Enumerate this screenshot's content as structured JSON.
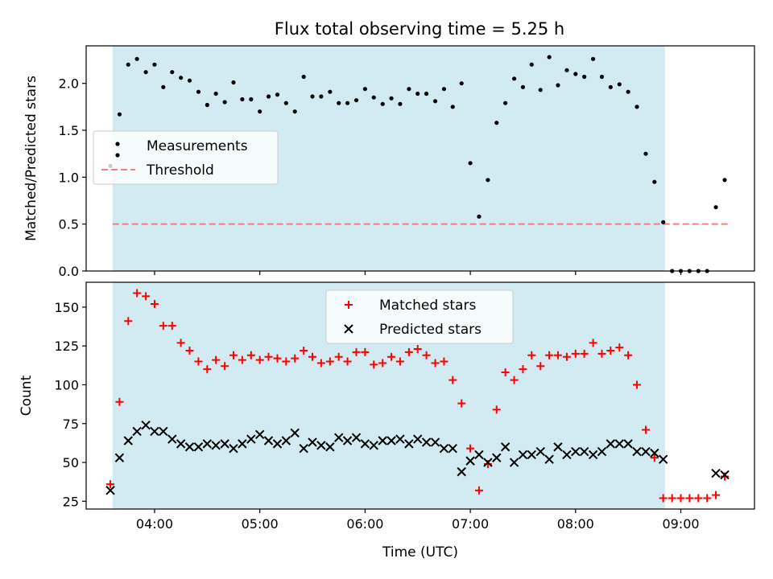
{
  "title": "Flux total observing time = 5.25 h",
  "chart_data": [
    {
      "type": "scatter",
      "panel": "top",
      "ylabel": "Matched/Predicted stars",
      "xlabel": "",
      "x_unit": "hours UTC",
      "xlim": [
        3.35,
        9.7
      ],
      "ylim": [
        0,
        2.4
      ],
      "y_ticks": [
        0.0,
        0.5,
        1.0,
        1.5,
        2.0
      ],
      "y_tick_labels": [
        "0.0",
        "0.5",
        "1.0",
        "1.5",
        "2.0"
      ],
      "shaded_span": [
        3.6,
        8.85
      ],
      "shade_color": "#add8e6",
      "legend_position": "center-left",
      "legend": [
        "Measurements",
        "Threshold"
      ],
      "series": [
        {
          "name": "Measurements",
          "marker": "dot",
          "color": "#000000",
          "points": [
            [
              3.58,
              1.12
            ],
            [
              3.667,
              1.67
            ],
            [
              3.75,
              2.2
            ],
            [
              3.833,
              2.26
            ],
            [
              3.917,
              2.12
            ],
            [
              4.0,
              2.2
            ],
            [
              4.083,
              1.96
            ],
            [
              4.167,
              2.12
            ],
            [
              4.25,
              2.06
            ],
            [
              4.333,
              2.03
            ],
            [
              4.417,
              1.91
            ],
            [
              4.5,
              1.77
            ],
            [
              4.583,
              1.89
            ],
            [
              4.667,
              1.8
            ],
            [
              4.75,
              2.01
            ],
            [
              4.833,
              1.83
            ],
            [
              4.917,
              1.83
            ],
            [
              5.0,
              1.7
            ],
            [
              5.083,
              1.86
            ],
            [
              5.167,
              1.88
            ],
            [
              5.25,
              1.79
            ],
            [
              5.333,
              1.7
            ],
            [
              5.417,
              2.07
            ],
            [
              5.5,
              1.86
            ],
            [
              5.583,
              1.86
            ],
            [
              5.667,
              1.91
            ],
            [
              5.75,
              1.79
            ],
            [
              5.833,
              1.79
            ],
            [
              5.917,
              1.82
            ],
            [
              6.0,
              1.94
            ],
            [
              6.083,
              1.85
            ],
            [
              6.167,
              1.78
            ],
            [
              6.25,
              1.84
            ],
            [
              6.333,
              1.78
            ],
            [
              6.417,
              1.94
            ],
            [
              6.5,
              1.89
            ],
            [
              6.583,
              1.89
            ],
            [
              6.667,
              1.81
            ],
            [
              6.75,
              1.94
            ],
            [
              6.833,
              1.75
            ],
            [
              6.917,
              2.0
            ],
            [
              7.0,
              1.15
            ],
            [
              7.083,
              0.58
            ],
            [
              7.167,
              0.97
            ],
            [
              7.25,
              1.58
            ],
            [
              7.333,
              1.79
            ],
            [
              7.417,
              2.05
            ],
            [
              7.5,
              1.96
            ],
            [
              7.583,
              2.2
            ],
            [
              7.667,
              1.93
            ],
            [
              7.75,
              2.28
            ],
            [
              7.833,
              1.98
            ],
            [
              7.917,
              2.14
            ],
            [
              8.0,
              2.1
            ],
            [
              8.083,
              2.07
            ],
            [
              8.167,
              2.26
            ],
            [
              8.25,
              2.07
            ],
            [
              8.333,
              1.96
            ],
            [
              8.417,
              1.99
            ],
            [
              8.5,
              1.91
            ],
            [
              8.583,
              1.75
            ],
            [
              8.667,
              1.25
            ],
            [
              8.75,
              0.95
            ],
            [
              8.833,
              0.52
            ],
            [
              8.917,
              0.0
            ],
            [
              9.0,
              0.0
            ],
            [
              9.083,
              0.0
            ],
            [
              9.167,
              0.0
            ],
            [
              9.25,
              0.0
            ],
            [
              9.333,
              0.68
            ],
            [
              9.417,
              0.97
            ]
          ]
        },
        {
          "name": "Threshold",
          "style": "dashed",
          "color": "#f08080",
          "points": [
            [
              3.6,
              0.5
            ],
            [
              9.45,
              0.5
            ]
          ]
        }
      ]
    },
    {
      "type": "scatter",
      "panel": "bottom",
      "ylabel": "Count",
      "xlabel": "Time (UTC)",
      "x_unit": "hours UTC",
      "xlim": [
        3.35,
        9.7
      ],
      "ylim": [
        20,
        166
      ],
      "x_ticks": [
        4,
        5,
        6,
        7,
        8,
        9
      ],
      "x_tick_labels": [
        "04:00",
        "05:00",
        "06:00",
        "07:00",
        "08:00",
        "09:00"
      ],
      "y_ticks": [
        25,
        50,
        75,
        100,
        125,
        150
      ],
      "y_tick_labels": [
        "25",
        "50",
        "75",
        "100",
        "125",
        "150"
      ],
      "shaded_span": [
        3.6,
        8.85
      ],
      "shade_color": "#add8e6",
      "legend_position": "top-center",
      "legend": [
        "Matched stars",
        "Predicted stars"
      ],
      "series": [
        {
          "name": "Matched stars",
          "marker": "plus",
          "color": "#ff0000",
          "points": [
            [
              3.58,
              36
            ],
            [
              3.667,
              89
            ],
            [
              3.75,
              141
            ],
            [
              3.833,
              159
            ],
            [
              3.917,
              157
            ],
            [
              4.0,
              152
            ],
            [
              4.083,
              138
            ],
            [
              4.167,
              138
            ],
            [
              4.25,
              127
            ],
            [
              4.333,
              122
            ],
            [
              4.417,
              115
            ],
            [
              4.5,
              110
            ],
            [
              4.583,
              116
            ],
            [
              4.667,
              112
            ],
            [
              4.75,
              119
            ],
            [
              4.833,
              116
            ],
            [
              4.917,
              119
            ],
            [
              5.0,
              116
            ],
            [
              5.083,
              118
            ],
            [
              5.167,
              117
            ],
            [
              5.25,
              115
            ],
            [
              5.333,
              117
            ],
            [
              5.417,
              122
            ],
            [
              5.5,
              118
            ],
            [
              5.583,
              114
            ],
            [
              5.667,
              115
            ],
            [
              5.75,
              118
            ],
            [
              5.833,
              115
            ],
            [
              5.917,
              121
            ],
            [
              6.0,
              121
            ],
            [
              6.083,
              113
            ],
            [
              6.167,
              114
            ],
            [
              6.25,
              118
            ],
            [
              6.333,
              115
            ],
            [
              6.417,
              121
            ],
            [
              6.5,
              123
            ],
            [
              6.583,
              119
            ],
            [
              6.667,
              114
            ],
            [
              6.75,
              115
            ],
            [
              6.833,
              103
            ],
            [
              6.917,
              88
            ],
            [
              7.0,
              59
            ],
            [
              7.083,
              32
            ],
            [
              7.167,
              49
            ],
            [
              7.25,
              84
            ],
            [
              7.333,
              108
            ],
            [
              7.417,
              103
            ],
            [
              7.5,
              110
            ],
            [
              7.583,
              119
            ],
            [
              7.667,
              112
            ],
            [
              7.75,
              119
            ],
            [
              7.833,
              119
            ],
            [
              7.917,
              118
            ],
            [
              8.0,
              120
            ],
            [
              8.083,
              120
            ],
            [
              8.167,
              127
            ],
            [
              8.25,
              120
            ],
            [
              8.333,
              122
            ],
            [
              8.417,
              124
            ],
            [
              8.5,
              119
            ],
            [
              8.583,
              100
            ],
            [
              8.667,
              71
            ],
            [
              8.75,
              53
            ],
            [
              8.833,
              27
            ],
            [
              8.917,
              27
            ],
            [
              9.0,
              27
            ],
            [
              9.083,
              27
            ],
            [
              9.167,
              27
            ],
            [
              9.25,
              27
            ],
            [
              9.333,
              29
            ],
            [
              9.417,
              41
            ]
          ]
        },
        {
          "name": "Predicted stars",
          "marker": "x",
          "color": "#000000",
          "points": [
            [
              3.58,
              32
            ],
            [
              3.667,
              53
            ],
            [
              3.75,
              64
            ],
            [
              3.833,
              70
            ],
            [
              3.917,
              74
            ],
            [
              4.0,
              70
            ],
            [
              4.083,
              70
            ],
            [
              4.167,
              65
            ],
            [
              4.25,
              62
            ],
            [
              4.333,
              60
            ],
            [
              4.417,
              60
            ],
            [
              4.5,
              62
            ],
            [
              4.583,
              61
            ],
            [
              4.667,
              62
            ],
            [
              4.75,
              59
            ],
            [
              4.833,
              62
            ],
            [
              4.917,
              65
            ],
            [
              5.0,
              68
            ],
            [
              5.083,
              64
            ],
            [
              5.167,
              62
            ],
            [
              5.25,
              64
            ],
            [
              5.333,
              69
            ],
            [
              5.417,
              59
            ],
            [
              5.5,
              63
            ],
            [
              5.583,
              61
            ],
            [
              5.667,
              60
            ],
            [
              5.75,
              66
            ],
            [
              5.833,
              64
            ],
            [
              5.917,
              66
            ],
            [
              6.0,
              62
            ],
            [
              6.083,
              61
            ],
            [
              6.167,
              64
            ],
            [
              6.25,
              64
            ],
            [
              6.333,
              65
            ],
            [
              6.417,
              62
            ],
            [
              6.5,
              65
            ],
            [
              6.583,
              63
            ],
            [
              6.667,
              63
            ],
            [
              6.75,
              59
            ],
            [
              6.833,
              59
            ],
            [
              6.917,
              44
            ],
            [
              7.0,
              51
            ],
            [
              7.083,
              55
            ],
            [
              7.167,
              50
            ],
            [
              7.25,
              53
            ],
            [
              7.333,
              60
            ],
            [
              7.417,
              50
            ],
            [
              7.5,
              55
            ],
            [
              7.583,
              55
            ],
            [
              7.667,
              57
            ],
            [
              7.75,
              52
            ],
            [
              7.833,
              60
            ],
            [
              7.917,
              55
            ],
            [
              8.0,
              57
            ],
            [
              8.083,
              57
            ],
            [
              8.167,
              55
            ],
            [
              8.25,
              57
            ],
            [
              8.333,
              62
            ],
            [
              8.417,
              62
            ],
            [
              8.5,
              62
            ],
            [
              8.583,
              57
            ],
            [
              8.667,
              57
            ],
            [
              8.75,
              56
            ],
            [
              8.833,
              52
            ],
            [
              9.333,
              43
            ],
            [
              9.417,
              42
            ]
          ]
        }
      ]
    }
  ]
}
